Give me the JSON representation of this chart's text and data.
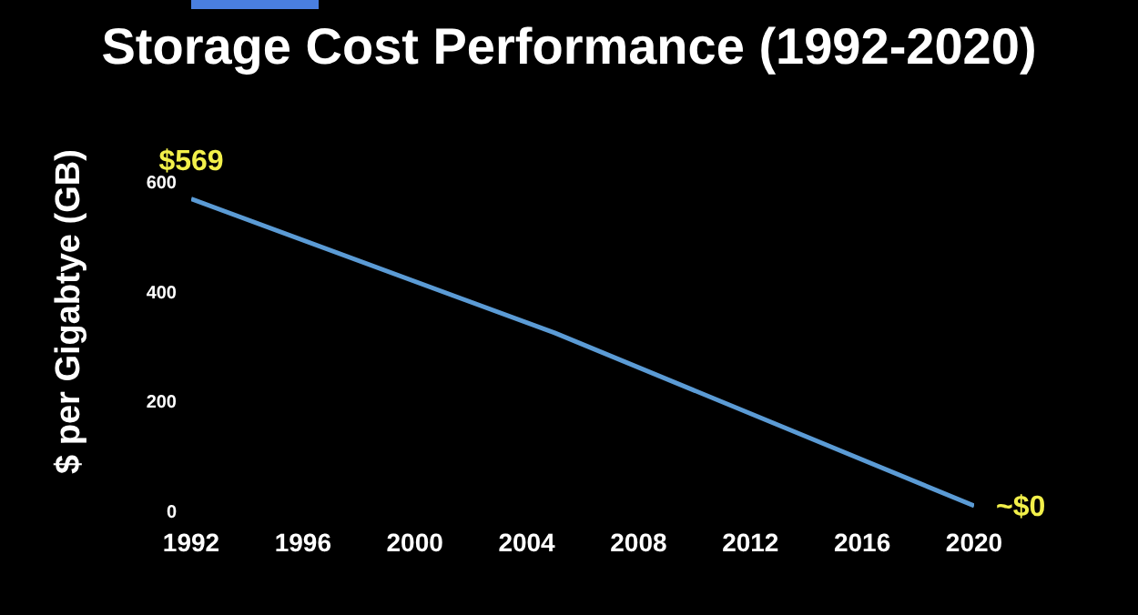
{
  "chart_data": {
    "type": "line",
    "title": "Storage Cost Performance (1992-2020)",
    "ylabel": "$ per Gigabtye (GB)",
    "x": [
      1992,
      2005,
      2020
    ],
    "series": [
      {
        "color": "#5b9bd5",
        "values": [
          569,
          325,
          10
        ]
      }
    ],
    "xlim": [
      1992,
      2020
    ],
    "xticks": [
      1992,
      1996,
      2000,
      2004,
      2008,
      2012,
      2016,
      2020
    ],
    "ylim": [
      0,
      600
    ],
    "yticks": [
      0,
      200,
      400,
      600
    ],
    "annotations": [
      {
        "text": "$569",
        "x": 1992,
        "y": 569
      },
      {
        "text": "~$0",
        "x": 2020,
        "y": 10
      }
    ],
    "grid": false,
    "marker": "none",
    "line_style": "solid"
  }
}
